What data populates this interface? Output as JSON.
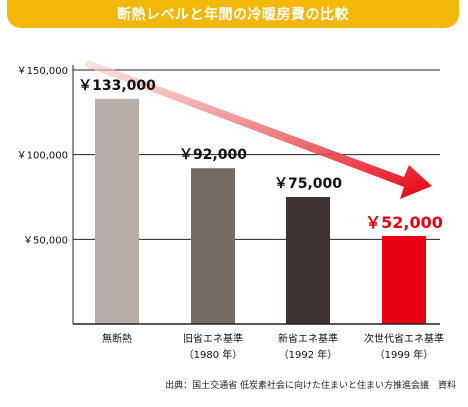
{
  "title": "断熱レベルと年間の冷暖房費の比較",
  "source": "出典：国土交通省 低炭素社会に向けた住まいと住まい方推進会議　資料",
  "chart_data": {
    "type": "bar",
    "title": "断熱レベルと年間の冷暖房費の比較",
    "ylim": [
      0,
      150000
    ],
    "yticks": [
      50000,
      100000,
      150000
    ],
    "ytick_labels": [
      "￥50,000",
      "￥100,000",
      "￥150,000"
    ],
    "grid": true,
    "categories": [
      {
        "line1": "無断熱",
        "line2": ""
      },
      {
        "line1": "旧省エネ基準",
        "line2": "（1980 年）"
      },
      {
        "line1": "新省エネ基準",
        "line2": "（1992 年）"
      },
      {
        "line1": "次世代省エネ基準",
        "line2": "（1999 年）"
      }
    ],
    "values": [
      133000,
      92000,
      75000,
      52000
    ],
    "value_labels": [
      "￥133,000",
      "￥92,000",
      "￥75,000",
      "￥52,000"
    ],
    "bar_colors": [
      "#b7ada9",
      "#776b66",
      "#3e3330",
      "#e60012"
    ],
    "label_colors": [
      "#111111",
      "#111111",
      "#111111",
      "#e60012"
    ],
    "arrow_color_start": "#f2d5c9",
    "arrow_color_end": "#e60012"
  }
}
